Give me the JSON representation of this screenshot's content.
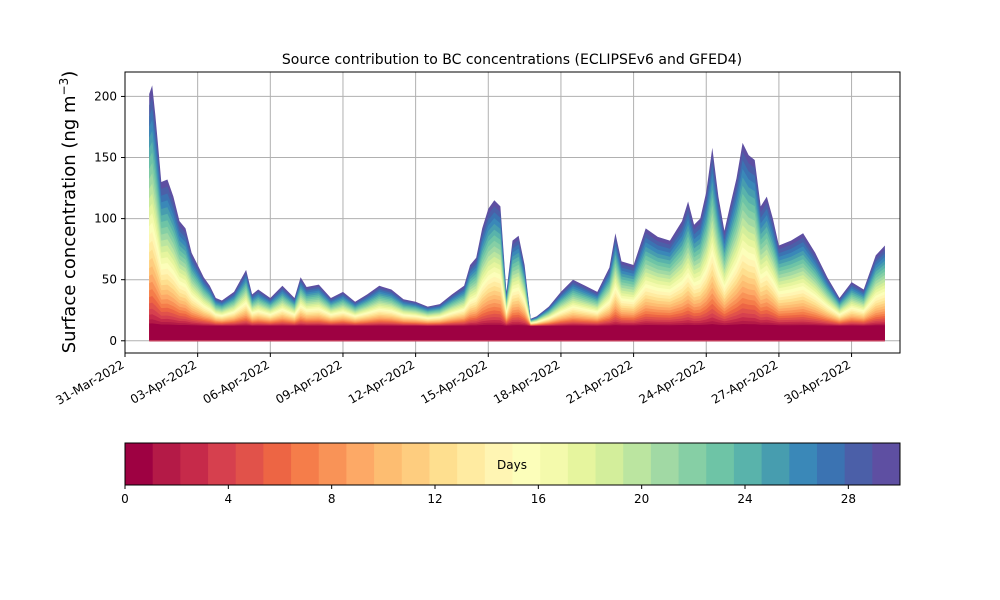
{
  "chart_data": {
    "type": "area",
    "title": "Source contribution to BC concentrations (ECLIPSEv6 and GFED4)",
    "ylabel_main": "Surface concentration (ng m",
    "ylabel_sup": "−3",
    "ylabel_close": ")",
    "ylim": [
      -10,
      220
    ],
    "yticks": [
      0,
      50,
      100,
      150,
      200
    ],
    "ytick_labels": [
      "0",
      "50",
      "100",
      "150",
      "200"
    ],
    "xlim": [
      "2022-03-31T00:00",
      "2022-05-02T00:00"
    ],
    "xticks": [
      "2022-03-31",
      "2022-04-03",
      "2022-04-06",
      "2022-04-09",
      "2022-04-12",
      "2022-04-15",
      "2022-04-18",
      "2022-04-21",
      "2022-04-24",
      "2022-04-27",
      "2022-04-30"
    ],
    "xtick_labels": [
      "31-Mar-2022",
      "03-Apr-2022",
      "06-Apr-2022",
      "09-Apr-2022",
      "12-Apr-2022",
      "15-Apr-2022",
      "18-Apr-2022",
      "21-Apr-2022",
      "24-Apr-2022",
      "27-Apr-2022",
      "30-Apr-2022"
    ],
    "grid": true,
    "colorbar": {
      "label": "Days",
      "range": [
        0,
        30
      ],
      "ticks": [
        0,
        4,
        8,
        12,
        16,
        20,
        24,
        28
      ],
      "tick_labels": [
        "0",
        "4",
        "8",
        "12",
        "16",
        "20",
        "24",
        "28"
      ],
      "colormap": "Spectral",
      "colors": [
        "#9e0142",
        "#b41a47",
        "#c62a4a",
        "#d6404e",
        "#e1524a",
        "#ed6544",
        "#f57d4a",
        "#f99357",
        "#fda966",
        "#fdbd71",
        "#fecd7f",
        "#fedf8f",
        "#ffeba1",
        "#fff5b3",
        "#fcfeba",
        "#f4faac",
        "#e6f59e",
        "#d3ee9b",
        "#bbe5a0",
        "#a1d9a4",
        "#86cfa5",
        "#6ec4a6",
        "#59b3ab",
        "#479daf",
        "#3a88b8",
        "#3b73b2",
        "#4b5fa8",
        "#5e4fa2"
      ]
    },
    "series_total": {
      "x": [
        "2022-04-01T00:00",
        "2022-04-01T03:00",
        "2022-04-01T06:00",
        "2022-04-01T09:00",
        "2022-04-01T12:00",
        "2022-04-01T18:00",
        "2022-04-02T00:00",
        "2022-04-02T06:00",
        "2022-04-02T12:00",
        "2022-04-02T18:00",
        "2022-04-03T00:00",
        "2022-04-03T06:00",
        "2022-04-03T12:00",
        "2022-04-03T18:00",
        "2022-04-04T00:00",
        "2022-04-04T12:00",
        "2022-04-05T00:00",
        "2022-04-05T06:00",
        "2022-04-05T12:00",
        "2022-04-06T00:00",
        "2022-04-06T12:00",
        "2022-04-07T00:00",
        "2022-04-07T06:00",
        "2022-04-07T12:00",
        "2022-04-08T00:00",
        "2022-04-08T12:00",
        "2022-04-09T00:00",
        "2022-04-09T12:00",
        "2022-04-10T00:00",
        "2022-04-10T12:00",
        "2022-04-11T00:00",
        "2022-04-11T12:00",
        "2022-04-12T00:00",
        "2022-04-12T12:00",
        "2022-04-13T00:00",
        "2022-04-13T12:00",
        "2022-04-14T00:00",
        "2022-04-14T06:00",
        "2022-04-14T12:00",
        "2022-04-14T18:00",
        "2022-04-15T00:00",
        "2022-04-15T06:00",
        "2022-04-15T12:00",
        "2022-04-15T18:00",
        "2022-04-16T00:00",
        "2022-04-16T06:00",
        "2022-04-16T12:00",
        "2022-04-16T18:00",
        "2022-04-17T00:00",
        "2022-04-17T12:00",
        "2022-04-18T00:00",
        "2022-04-18T12:00",
        "2022-04-19T00:00",
        "2022-04-19T12:00",
        "2022-04-20T00:00",
        "2022-04-20T06:00",
        "2022-04-20T12:00",
        "2022-04-21T00:00",
        "2022-04-21T12:00",
        "2022-04-22T00:00",
        "2022-04-22T12:00",
        "2022-04-23T00:00",
        "2022-04-23T06:00",
        "2022-04-23T12:00",
        "2022-04-23T18:00",
        "2022-04-24T00:00",
        "2022-04-24T06:00",
        "2022-04-24T12:00",
        "2022-04-24T18:00",
        "2022-04-25T00:00",
        "2022-04-25T06:00",
        "2022-04-25T12:00",
        "2022-04-25T18:00",
        "2022-04-26T00:00",
        "2022-04-26T06:00",
        "2022-04-26T12:00",
        "2022-04-26T18:00",
        "2022-04-27T00:00",
        "2022-04-27T12:00",
        "2022-04-28T00:00",
        "2022-04-28T12:00",
        "2022-04-29T00:00",
        "2022-04-29T12:00",
        "2022-04-30T00:00",
        "2022-04-30T12:00",
        "2022-05-01T00:00",
        "2022-05-01T09:00"
      ],
      "y": [
        202,
        209,
        185,
        158,
        130,
        132,
        118,
        98,
        92,
        72,
        62,
        52,
        45,
        35,
        33,
        40,
        58,
        38,
        42,
        35,
        45,
        35,
        52,
        44,
        46,
        35,
        40,
        32,
        38,
        45,
        42,
        34,
        32,
        28,
        30,
        38,
        45,
        62,
        68,
        92,
        108,
        115,
        110,
        40,
        82,
        86,
        62,
        18,
        20,
        28,
        40,
        50,
        45,
        40,
        60,
        88,
        65,
        62,
        92,
        85,
        82,
        98,
        114,
        95,
        100,
        122,
        158,
        118,
        90,
        112,
        133,
        162,
        152,
        148,
        110,
        118,
        100,
        78,
        82,
        88,
        72,
        52,
        35,
        48,
        42,
        70,
        78
      ]
    }
  }
}
